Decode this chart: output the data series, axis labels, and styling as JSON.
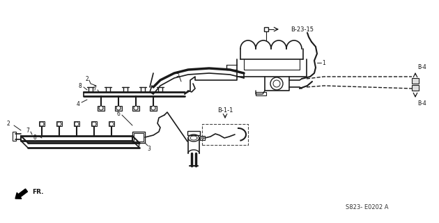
{
  "bg_color": "#ffffff",
  "diagram_code": "S823- E0202 A",
  "lc": "#1a1a1a",
  "dc": "#444444",
  "labels": {
    "B_23_15": "B-23-15",
    "B_1_1": "B-1-1",
    "B_4": "B-4",
    "FR": "FR."
  },
  "numbers": {
    "n1": "1",
    "n2": "2",
    "n3": "3",
    "n4": "4",
    "n5": "5",
    "n6": "6",
    "n7": "7",
    "n8": "8"
  }
}
